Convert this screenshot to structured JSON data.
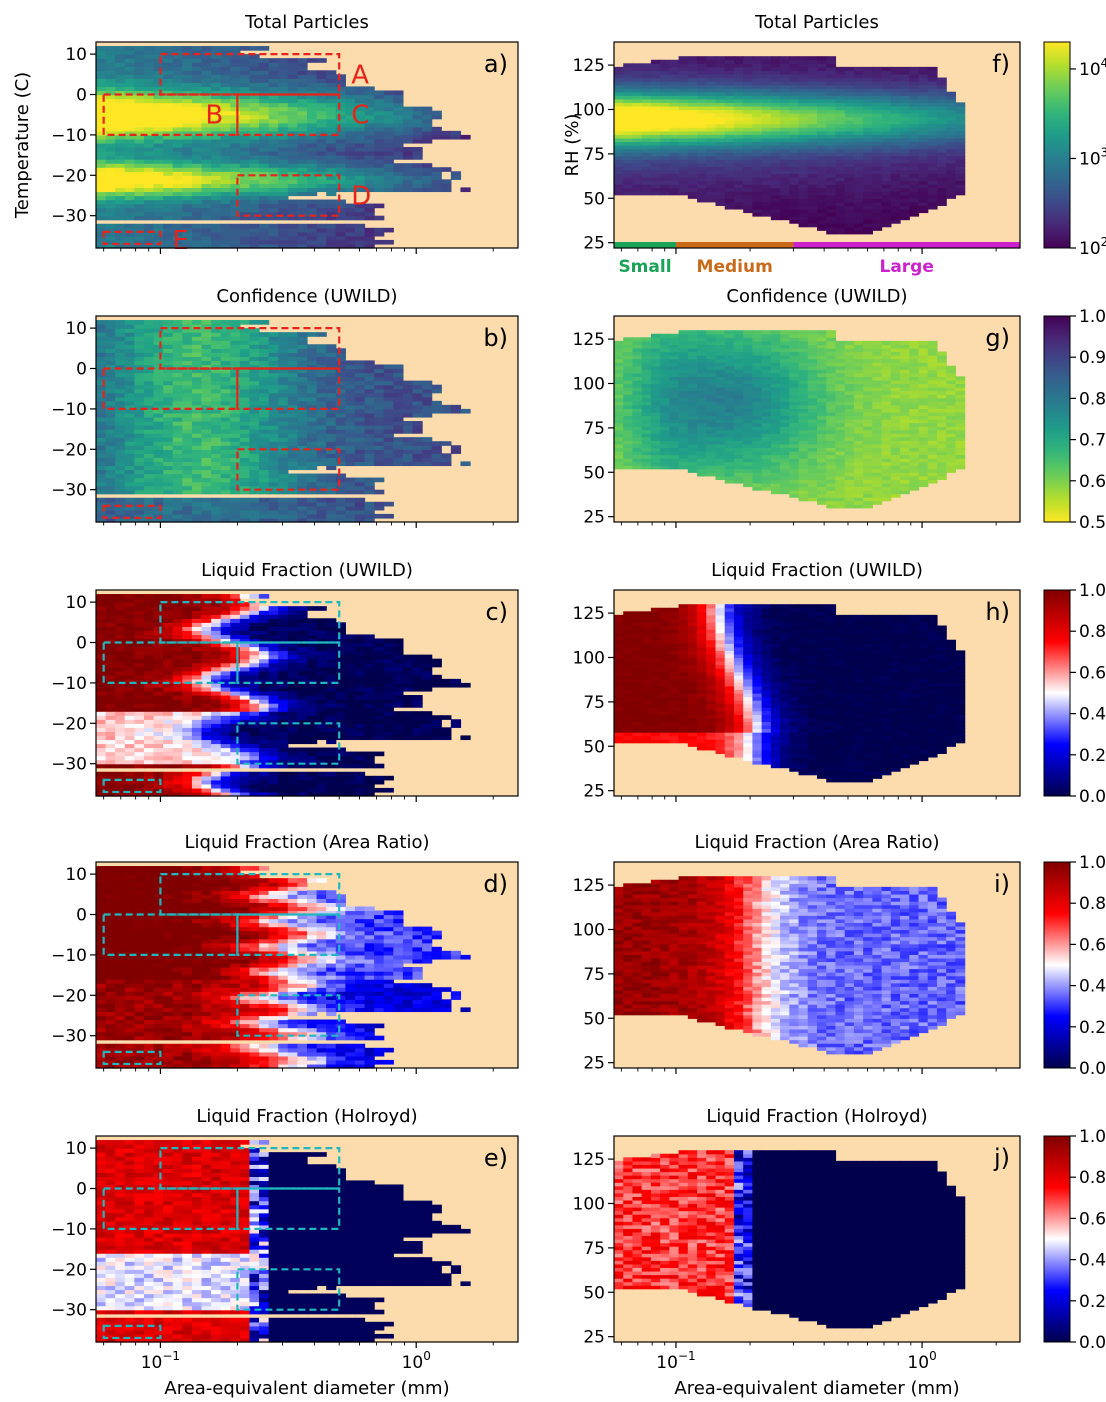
{
  "x_axis": {
    "label": "Area-equivalent diameter (mm)",
    "scale": "log",
    "range": [
      0.056,
      2.5
    ],
    "tick_labels": [
      {
        "value": 0.1,
        "base": "10",
        "exp": "−1"
      },
      {
        "value": 1.0,
        "base": "10",
        "exp": "0"
      }
    ]
  },
  "colors": {
    "background": "#fcdcac",
    "box_red": "#e8231c",
    "box_cyan": "#1fb8c0",
    "small": "#1aa356",
    "medium": "#c86a1a",
    "large": "#cc22cc"
  },
  "left_column": {
    "ylabel": "Temperature (C)",
    "ylim": [
      -38,
      13
    ],
    "yticks": [
      10,
      0,
      -10,
      -20,
      -30
    ],
    "boxes": [
      {
        "label": "A",
        "x": [
          0.1,
          0.5
        ],
        "y": [
          0,
          10
        ]
      },
      {
        "label": "B",
        "x": [
          0.06,
          0.2
        ],
        "y": [
          -10,
          0
        ]
      },
      {
        "label": "C",
        "x": [
          0.2,
          0.5
        ],
        "y": [
          -10,
          0
        ]
      },
      {
        "label": "D",
        "x": [
          0.2,
          0.5
        ],
        "y": [
          -30,
          -20
        ]
      },
      {
        "label": "E",
        "x": [
          0.06,
          0.1
        ],
        "y": [
          -37,
          -34
        ]
      }
    ],
    "box_labels_shown_in_panel": "a"
  },
  "right_column": {
    "ylabel": "RH (%)",
    "ylim": [
      22,
      138
    ],
    "yticks": [
      125,
      100,
      75,
      50,
      25
    ],
    "categories": [
      {
        "label": "Small",
        "x": [
          0.056,
          0.1
        ],
        "color_key": "small"
      },
      {
        "label": "Medium",
        "x": [
          0.1,
          0.3
        ],
        "color_key": "medium"
      },
      {
        "label": "Large",
        "x": [
          0.3,
          2.5
        ],
        "color_key": "large"
      }
    ]
  },
  "chart_data": [
    {
      "panel": "a",
      "type": "heatmap",
      "title": "Total Particles",
      "quantity": "count",
      "x": "diameter",
      "y": "temperature",
      "colormap": "viridis",
      "box_color": "red"
    },
    {
      "panel": "b",
      "type": "heatmap",
      "title": "Confidence (UWILD)",
      "quantity": "confidence",
      "x": "diameter",
      "y": "temperature",
      "colormap": "viridis_r",
      "box_color": "red"
    },
    {
      "panel": "c",
      "type": "heatmap",
      "title": "Liquid Fraction (UWILD)",
      "quantity": "liquid_uwild",
      "x": "diameter",
      "y": "temperature",
      "colormap": "seismic",
      "box_color": "cyan"
    },
    {
      "panel": "d",
      "type": "heatmap",
      "title": "Liquid Fraction (Area Ratio)",
      "quantity": "liquid_area",
      "x": "diameter",
      "y": "temperature",
      "colormap": "seismic",
      "box_color": "cyan"
    },
    {
      "panel": "e",
      "type": "heatmap",
      "title": "Liquid Fraction (Holroyd)",
      "quantity": "liquid_holroyd",
      "x": "diameter",
      "y": "temperature",
      "colormap": "seismic",
      "box_color": "cyan"
    },
    {
      "panel": "f",
      "type": "heatmap",
      "title": "Total Particles",
      "quantity": "count",
      "x": "diameter",
      "y": "rh",
      "colormap": "viridis",
      "colorbar": {
        "scale": "log",
        "range": [
          100,
          20000
        ],
        "ticks": [
          {
            "value": 100,
            "base": "10",
            "exp": "2"
          },
          {
            "value": 1000,
            "base": "10",
            "exp": "3"
          },
          {
            "value": 10000,
            "base": "10",
            "exp": "4"
          }
        ]
      }
    },
    {
      "panel": "g",
      "type": "heatmap",
      "title": "Confidence (UWILD)",
      "quantity": "confidence",
      "x": "diameter",
      "y": "rh",
      "colormap": "viridis_r",
      "colorbar": {
        "scale": "linear",
        "range": [
          0.5,
          1.0
        ],
        "ticks": [
          {
            "value": 1.0,
            "label": "1.0"
          },
          {
            "value": 0.9,
            "label": "0.9"
          },
          {
            "value": 0.8,
            "label": "0.8"
          },
          {
            "value": 0.7,
            "label": "0.7"
          },
          {
            "value": 0.6,
            "label": "0.6"
          },
          {
            "value": 0.5,
            "label": "0.5"
          }
        ]
      }
    },
    {
      "panel": "h",
      "type": "heatmap",
      "title": "Liquid Fraction (UWILD)",
      "quantity": "liquid_uwild",
      "x": "diameter",
      "y": "rh",
      "colormap": "seismic",
      "colorbar": {
        "scale": "linear",
        "range": [
          0.0,
          1.0
        ],
        "ticks": [
          {
            "value": 1.0,
            "label": "1.0"
          },
          {
            "value": 0.8,
            "label": "0.8"
          },
          {
            "value": 0.6,
            "label": "0.6"
          },
          {
            "value": 0.4,
            "label": "0.4"
          },
          {
            "value": 0.2,
            "label": "0.2"
          },
          {
            "value": 0.0,
            "label": "0.0"
          }
        ]
      }
    },
    {
      "panel": "i",
      "type": "heatmap",
      "title": "Liquid Fraction (Area Ratio)",
      "quantity": "liquid_area",
      "x": "diameter",
      "y": "rh",
      "colormap": "seismic",
      "colorbar": {
        "scale": "linear",
        "range": [
          0.0,
          1.0
        ],
        "ticks": [
          {
            "value": 1.0,
            "label": "1.0"
          },
          {
            "value": 0.8,
            "label": "0.8"
          },
          {
            "value": 0.6,
            "label": "0.6"
          },
          {
            "value": 0.4,
            "label": "0.4"
          },
          {
            "value": 0.2,
            "label": "0.2"
          },
          {
            "value": 0.0,
            "label": "0.0"
          }
        ]
      }
    },
    {
      "panel": "j",
      "type": "heatmap",
      "title": "Liquid Fraction (Holroyd)",
      "quantity": "liquid_holroyd",
      "x": "diameter",
      "y": "rh",
      "colormap": "seismic",
      "colorbar": {
        "scale": "linear",
        "range": [
          0.0,
          1.0
        ],
        "ticks": [
          {
            "value": 1.0,
            "label": "1.0"
          },
          {
            "value": 0.8,
            "label": "0.8"
          },
          {
            "value": 0.6,
            "label": "0.6"
          },
          {
            "value": 0.4,
            "label": "0.4"
          },
          {
            "value": 0.2,
            "label": "0.2"
          },
          {
            "value": 0.0,
            "label": "0.0"
          }
        ]
      }
    }
  ]
}
